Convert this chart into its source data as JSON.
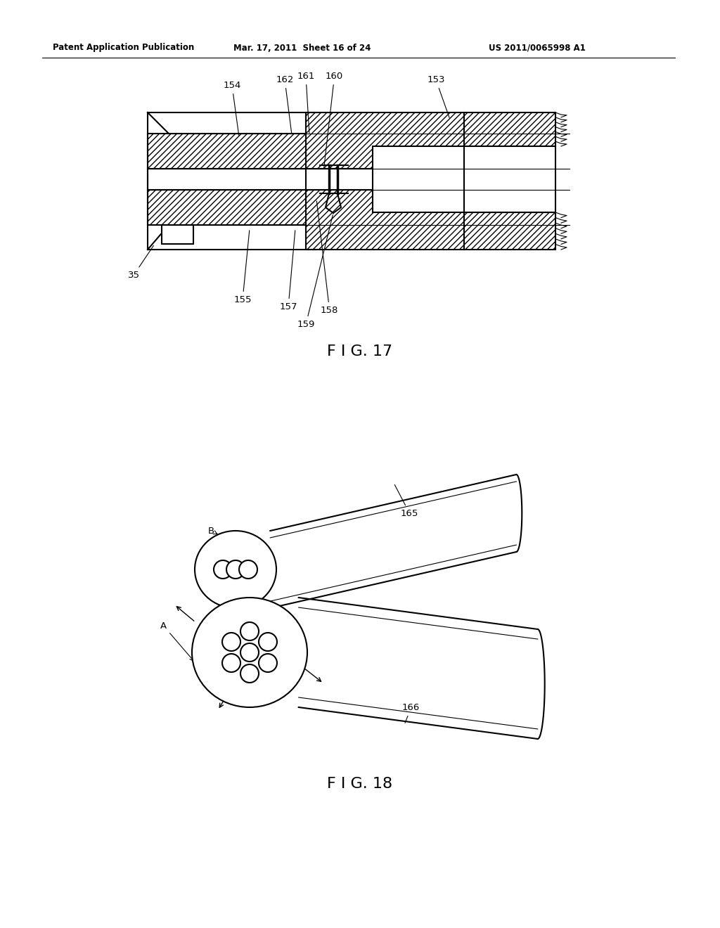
{
  "bg_color": "#ffffff",
  "header_left": "Patent Application Publication",
  "header_mid": "Mar. 17, 2011  Sheet 16 of 24",
  "header_right": "US 2011/0065998 A1",
  "fig17_label": "F I G. 17",
  "fig18_label": "F I G. 18"
}
